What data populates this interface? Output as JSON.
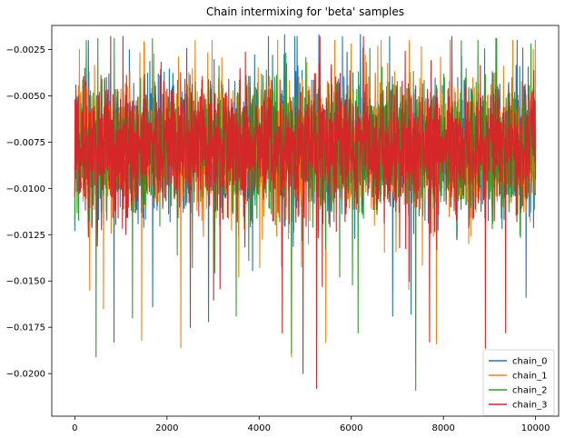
{
  "chart_data": {
    "type": "line",
    "title": "Chain intermixing for 'beta' samples",
    "xlabel": "",
    "ylabel": "",
    "xlim": [
      -500,
      10500
    ],
    "ylim": [
      -0.0223,
      -0.0012
    ],
    "x_ticks": [
      0,
      2000,
      4000,
      6000,
      8000,
      10000
    ],
    "x_tick_labels": [
      "0",
      "2000",
      "4000",
      "6000",
      "8000",
      "10000"
    ],
    "y_ticks": [
      -0.0025,
      -0.005,
      -0.0075,
      -0.01,
      -0.0125,
      -0.015,
      -0.0175,
      -0.02
    ],
    "y_tick_labels": [
      "−0.0025",
      "−0.0050",
      "−0.0075",
      "−0.0100",
      "−0.0125",
      "−0.0150",
      "−0.0175",
      "−0.0200"
    ],
    "grid": false,
    "legend_position": "lower-right",
    "n_samples": 10000,
    "series": [
      {
        "name": "chain_0",
        "color": "#1f77b4",
        "approx_mean": -0.0078,
        "core_band": [
          -0.0105,
          -0.0045
        ],
        "approx_min": -0.0183,
        "approx_max": -0.0018,
        "notable_points": [
          {
            "x": 0,
            "y": -0.0123
          },
          {
            "x": 850,
            "y": -0.0183
          },
          {
            "x": 1690,
            "y": -0.0164
          },
          {
            "x": 2900,
            "y": -0.0172
          },
          {
            "x": 4200,
            "y": -0.0018
          },
          {
            "x": 4550,
            "y": -0.0017
          },
          {
            "x": 5300,
            "y": -0.0017
          },
          {
            "x": 6200,
            "y": -0.0017
          },
          {
            "x": 6900,
            "y": -0.0169
          },
          {
            "x": 7300,
            "y": -0.0168
          },
          {
            "x": 9600,
            "y": -0.002
          }
        ]
      },
      {
        "name": "chain_1",
        "color": "#ff7f0e",
        "approx_mean": -0.0078,
        "core_band": [
          -0.0105,
          -0.0045
        ],
        "approx_min": -0.0191,
        "approx_max": -0.002,
        "notable_points": [
          {
            "x": 100,
            "y": -0.0025
          },
          {
            "x": 320,
            "y": -0.0155
          },
          {
            "x": 620,
            "y": -0.0165
          },
          {
            "x": 1450,
            "y": -0.0182
          },
          {
            "x": 2300,
            "y": -0.0186
          },
          {
            "x": 4700,
            "y": -0.0191
          },
          {
            "x": 5450,
            "y": -0.0183
          },
          {
            "x": 6000,
            "y": -0.0022
          },
          {
            "x": 7850,
            "y": -0.0184
          },
          {
            "x": 9950,
            "y": -0.0025
          }
        ]
      },
      {
        "name": "chain_2",
        "color": "#2ca02c",
        "approx_mean": -0.0078,
        "core_band": [
          -0.0105,
          -0.0045
        ],
        "approx_min": -0.0209,
        "approx_max": -0.0019,
        "notable_points": [
          {
            "x": 0,
            "y": -0.0117
          },
          {
            "x": 250,
            "y": -0.002
          },
          {
            "x": 460,
            "y": -0.0191
          },
          {
            "x": 500,
            "y": -0.0019
          },
          {
            "x": 1250,
            "y": -0.017
          },
          {
            "x": 3500,
            "y": -0.0169
          },
          {
            "x": 4700,
            "y": -0.0189
          },
          {
            "x": 6150,
            "y": -0.0178
          },
          {
            "x": 7400,
            "y": -0.0209
          },
          {
            "x": 8750,
            "y": -0.002
          },
          {
            "x": 9900,
            "y": -0.0022
          }
        ]
      },
      {
        "name": "chain_3",
        "color": "#d62728",
        "approx_mean": -0.0078,
        "core_band": [
          -0.0105,
          -0.0045
        ],
        "approx_min": -0.0208,
        "approx_max": -0.0018,
        "notable_points": [
          {
            "x": 0,
            "y": -0.0105
          },
          {
            "x": 780,
            "y": -0.0018
          },
          {
            "x": 4500,
            "y": -0.0178
          },
          {
            "x": 4950,
            "y": -0.02
          },
          {
            "x": 5250,
            "y": -0.0208
          },
          {
            "x": 7700,
            "y": -0.0183
          },
          {
            "x": 9350,
            "y": -0.0178
          },
          {
            "x": 10000,
            "y": -0.0095
          }
        ]
      }
    ]
  }
}
